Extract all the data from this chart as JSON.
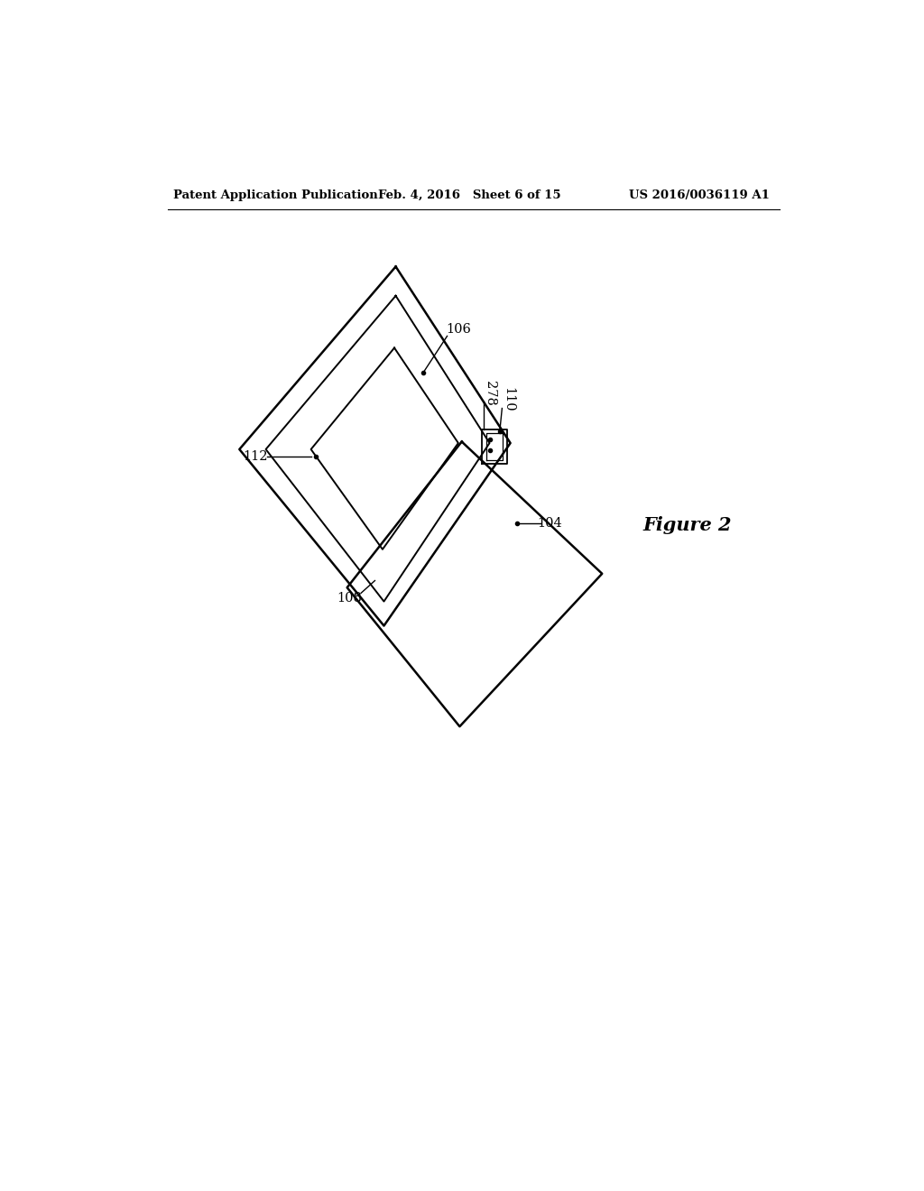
{
  "bg_color": "#ffffff",
  "header_left": "Patent Application Publication",
  "header_mid": "Feb. 4, 2016   Sheet 6 of 15",
  "header_right": "US 2016/0036119 A1",
  "figure_label": "Figure 2",
  "lw_main": 1.8,
  "lw_inner": 1.4,
  "label_fontsize": 10.5,
  "header_fontsize": 9.5
}
